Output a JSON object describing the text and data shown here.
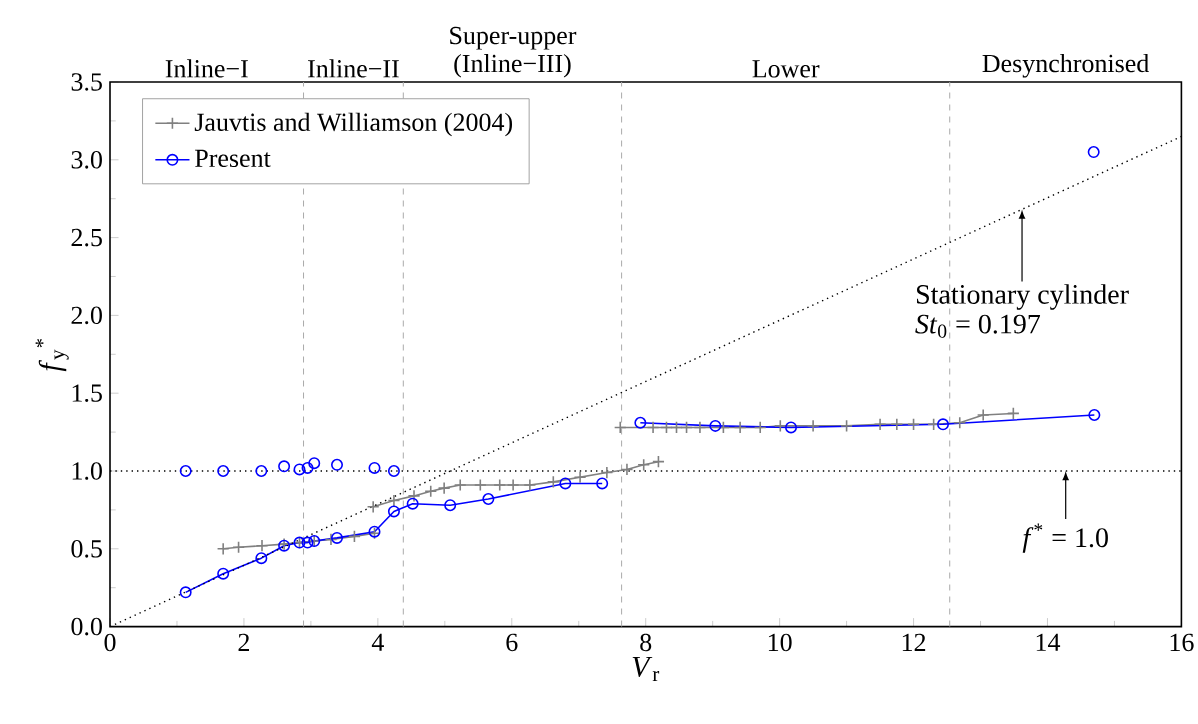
{
  "chart_data": {
    "type": "line",
    "xlabel": "*V*$_{r}$",
    "ylabel": "*f*$_{y}$$^{*}$",
    "xlim": [
      0,
      16
    ],
    "ylim": [
      0,
      3.5
    ],
    "xticks": [
      0,
      2,
      4,
      6,
      8,
      10,
      12,
      14,
      16
    ],
    "yticks": [
      {
        "value": 0,
        "label": "0.0"
      },
      0.5,
      {
        "value": 1,
        "label": "1.0"
      },
      1.5,
      {
        "value": 2,
        "label": "2.0"
      },
      2.5,
      {
        "value": 3,
        "label": "3.0"
      },
      3.5
    ],
    "legend": "top left",
    "series": [
      {
        "name": "Jauvtis and Williamson (2004)",
        "color": "#808080",
        "marker": "cross",
        "x": [
          1.69,
          1.92,
          2.27,
          2.6,
          2.83,
          3.05,
          3.3,
          3.65,
          3.95
        ],
        "values": [
          0.5,
          0.51,
          0.52,
          0.53,
          0.54,
          0.55,
          0.56,
          0.58,
          0.6
        ]
      },
      {
        "color": "#808080",
        "marker": "cross",
        "x": [
          3.93,
          4.24,
          4.54,
          4.79,
          4.99,
          5.23,
          5.53,
          5.82,
          6.02,
          6.27,
          6.62,
          7.02,
          7.42,
          7.72,
          7.97,
          8.19
        ],
        "values": [
          0.77,
          0.81,
          0.84,
          0.87,
          0.89,
          0.91,
          0.91,
          0.91,
          0.91,
          0.91,
          0.93,
          0.96,
          0.99,
          1.01,
          1.04,
          1.06
        ]
      },
      {
        "color": "#808080",
        "marker": "cross",
        "x": [
          7.62,
          8.11,
          8.31,
          8.46,
          8.61,
          8.81,
          9.16,
          9.41,
          9.71,
          10.01,
          10.5,
          11.0,
          11.5,
          11.75,
          12.0,
          12.3,
          12.69,
          13.04,
          13.49
        ],
        "values": [
          1.28,
          1.28,
          1.28,
          1.28,
          1.28,
          1.28,
          1.28,
          1.28,
          1.28,
          1.29,
          1.29,
          1.29,
          1.3,
          1.3,
          1.3,
          1.3,
          1.31,
          1.36,
          1.37
        ]
      },
      {
        "name": "Present",
        "color": "#0000ff",
        "marker": "circle",
        "x": [
          1.13,
          1.69,
          2.26,
          2.6,
          2.83,
          2.95,
          3.05,
          3.39,
          3.95,
          4.24,
          4.52,
          5.08,
          5.65,
          6.8,
          7.35
        ],
        "values": [
          0.22,
          0.34,
          0.44,
          0.52,
          0.54,
          0.54,
          0.55,
          0.57,
          0.61,
          0.74,
          0.79,
          0.78,
          0.82,
          0.92,
          0.92
        ]
      },
      {
        "color": "#0000ff",
        "marker": "circle",
        "x": [
          7.92,
          9.04,
          10.17,
          12.44,
          14.7
        ],
        "values": [
          1.31,
          1.29,
          1.28,
          1.3,
          1.36
        ]
      },
      {
        "type": "scatter",
        "color": "#0000ff",
        "marker": "circle",
        "x": [
          1.13,
          1.69,
          2.26,
          2.6,
          2.83,
          2.95,
          3.05,
          3.39,
          3.95,
          4.24,
          14.69
        ],
        "values": [
          1.0,
          1.0,
          1.0,
          1.03,
          1.01,
          1.02,
          1.05,
          1.04,
          1.02,
          1.0,
          3.05
        ]
      },
      {
        "type": "line",
        "color": "#000000",
        "marker": "none",
        "line_style": "dotted",
        "x": [
          0,
          16
        ],
        "values": [
          0,
          3.15
        ]
      }
    ],
    "ref_lines": [
      {
        "axis": "y",
        "value": 1.0,
        "label": "*f*$^{*}$ = 1.0",
        "color": "#000000",
        "line_style": "dotted"
      },
      {
        "axis": "x",
        "value": 2.89,
        "color": "#aaaaaa",
        "line_style": "dashed"
      },
      {
        "axis": "x",
        "value": 4.38,
        "color": "#aaaaaa",
        "line_style": "dashed"
      },
      {
        "axis": "x",
        "value": 7.64,
        "color": "#aaaaaa",
        "line_style": "dashed"
      },
      {
        "axis": "x",
        "value": 12.54,
        "color": "#aaaaaa",
        "line_style": "dashed"
      }
    ],
    "annotations": [
      "Inline−I",
      "Inline−II",
      "Super-upper (Inline−III)",
      "Lower",
      "Desynchronised",
      {
        "text": "Stationary cylinder",
        "x": 13.62,
        "y": 2.68
      },
      "*St*$_{0}$ = 0.197"
    ]
  }
}
